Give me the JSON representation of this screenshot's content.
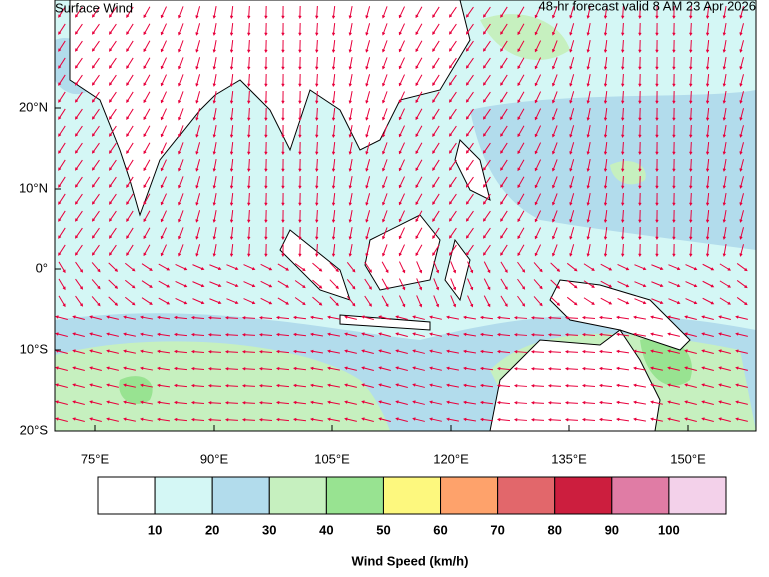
{
  "header": {
    "title": "Surface Wind",
    "subtitle": "48-hr forecast valid 8 AM 23 Apr 2026"
  },
  "map": {
    "lat_labels": [
      "20°N",
      "10°N",
      "0°",
      "10°S",
      "20°S"
    ],
    "lon_labels": [
      "75°E",
      "90°E",
      "105°E",
      "120°E",
      "135°E",
      "150°E"
    ]
  },
  "colorbar": {
    "colors": [
      "#ffffff",
      "#d4f7f5",
      "#b2dcec",
      "#c6f0bf",
      "#98e391",
      "#fdf87e",
      "#fea26b",
      "#e2676b",
      "#cc1e3e",
      "#e07ca5",
      "#f3d1ea"
    ],
    "labels": [
      "10",
      "20",
      "30",
      "40",
      "50",
      "60",
      "70",
      "80",
      "90",
      "100"
    ],
    "title": "Wind Speed (km/h)"
  }
}
